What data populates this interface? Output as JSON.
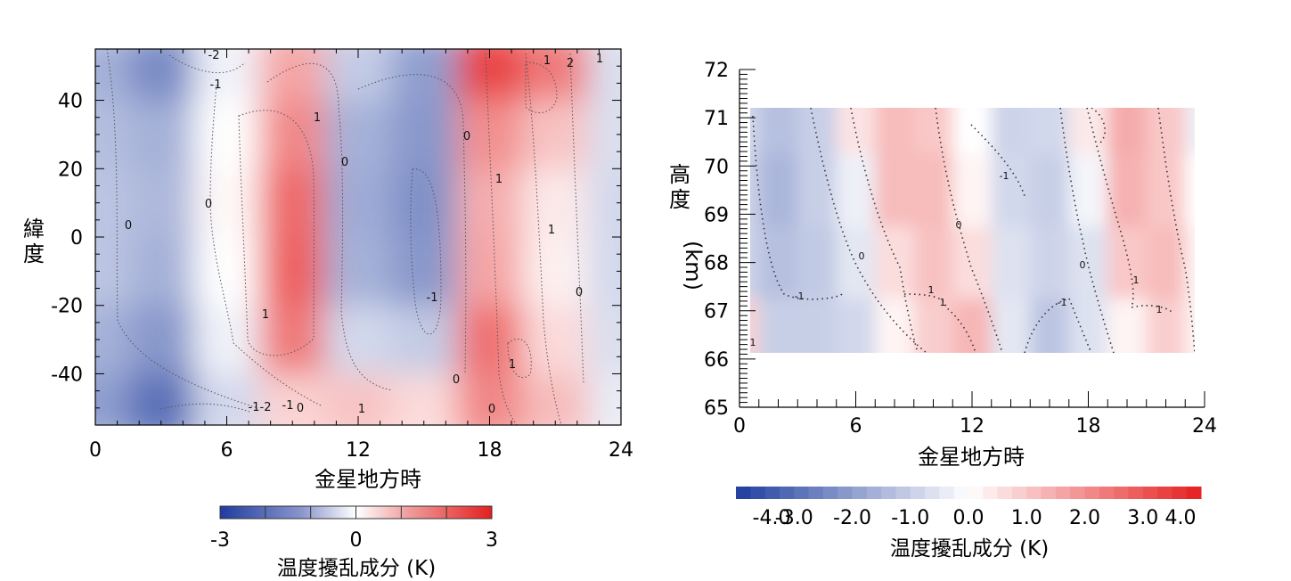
{
  "chart_data": [
    {
      "type": "heatmap",
      "xlabel": "金星地方時",
      "ylabel": "緯度",
      "x_ticks": [
        0,
        6,
        12,
        18,
        24
      ],
      "y_ticks": [
        40,
        20,
        0,
        -20,
        -40
      ],
      "xlim": [
        0,
        24
      ],
      "ylim": [
        -55,
        55
      ],
      "colorbar": {
        "label": "温度擾乱成分 (K)",
        "ticks": [
          "-3",
          "0",
          "3"
        ],
        "range": [
          -3,
          3
        ]
      },
      "x": [
        0,
        3,
        6,
        9,
        12,
        15,
        18,
        21,
        24
      ],
      "y": [
        50,
        30,
        10,
        -10,
        -30,
        -50
      ],
      "values": [
        [
          -1.2,
          -1.8,
          -0.2,
          1.2,
          -0.8,
          -1.5,
          2.5,
          1.8,
          -0.5
        ],
        [
          -1.0,
          -1.2,
          0.0,
          1.6,
          -1.2,
          -1.6,
          1.5,
          0.8,
          -0.5
        ],
        [
          -0.9,
          -1.1,
          0.1,
          2.0,
          -1.3,
          -1.7,
          1.1,
          0.3,
          -0.6
        ],
        [
          -0.9,
          -1.2,
          0.0,
          2.1,
          -1.2,
          -1.6,
          1.2,
          0.2,
          -0.6
        ],
        [
          -1.2,
          -1.6,
          -0.2,
          1.8,
          -0.6,
          -0.8,
          1.9,
          0.5,
          -0.5
        ],
        [
          -1.5,
          -2.2,
          -0.6,
          0.6,
          0.8,
          0.5,
          1.6,
          0.9,
          -0.3
        ]
      ],
      "contour_labels": [
        "-2",
        "-1",
        "1",
        "1",
        "0",
        "0",
        "0",
        "1",
        "1",
        "0",
        "-1",
        "-1",
        "1",
        "0",
        "0",
        "-2",
        "-1",
        "0",
        "1",
        "1",
        "2",
        "1",
        "0"
      ]
    },
    {
      "type": "heatmap",
      "xlabel": "金星地方時",
      "ylabel": "高度 (km)",
      "x_ticks": [
        0,
        6,
        12,
        18,
        24
      ],
      "y_ticks": [
        72,
        71,
        70,
        69,
        68,
        67,
        66,
        65
      ],
      "xlim": [
        0,
        24
      ],
      "ylim": [
        65,
        72
      ],
      "data_extent": {
        "x": [
          0,
          23.5
        ],
        "y": [
          66.2,
          71.2
        ]
      },
      "colorbar": {
        "label": "温度擾乱成分 (K)",
        "ticks": [
          "-4.0",
          "-3.0",
          "-2.0",
          "-1.0",
          "0.0",
          "1.0",
          "2.0",
          "3.0",
          "4.0"
        ],
        "range": [
          -4,
          4
        ]
      },
      "x": [
        0,
        2,
        4,
        6,
        8,
        10,
        12,
        14,
        16,
        18,
        20,
        22,
        24
      ],
      "y": [
        71,
        69.5,
        68,
        66.5
      ],
      "values": [
        [
          -0.8,
          -1.3,
          -1.0,
          0.5,
          1.2,
          1.0,
          0.0,
          -0.9,
          -0.8,
          0.4,
          1.5,
          1.0,
          -0.3
        ],
        [
          -0.9,
          -1.5,
          -1.0,
          -0.3,
          1.2,
          1.2,
          0.2,
          -0.8,
          -1.0,
          -0.2,
          1.4,
          1.0,
          0.0
        ],
        [
          -0.9,
          -1.3,
          -1.1,
          -0.5,
          0.6,
          1.1,
          0.6,
          -0.6,
          -0.9,
          -0.6,
          1.0,
          1.2,
          0.2
        ],
        [
          0.8,
          -1.0,
          -1.0,
          -0.8,
          0.2,
          0.9,
          1.3,
          -0.5,
          -1.2,
          -0.6,
          0.2,
          0.9,
          0.2
        ]
      ],
      "contour_labels": [
        "-1",
        "0",
        "-1",
        "1",
        "1",
        "1",
        "0",
        "-1",
        "0",
        "1",
        "1"
      ]
    }
  ]
}
